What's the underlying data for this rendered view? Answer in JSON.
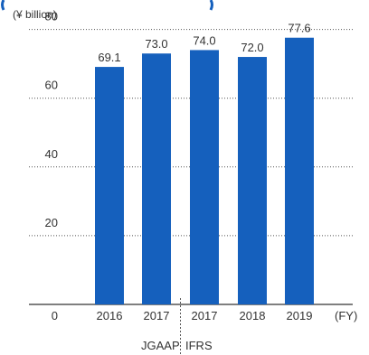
{
  "unit_label": "(¥ billion)",
  "x_axis_unit": "(FY)",
  "standards": {
    "left": "JGAAP",
    "right": "IFRS"
  },
  "colors": {
    "bar": "#1560bd",
    "grid": "#555555",
    "axis": "#333333",
    "text": "#333333"
  },
  "chart_data": {
    "type": "bar",
    "categories": [
      "2016",
      "2017",
      "2017",
      "2018",
      "2019"
    ],
    "values": [
      69.1,
      73.0,
      74.0,
      72.0,
      77.6
    ],
    "value_labels": [
      "69.1",
      "73.0",
      "74.0",
      "72.0",
      "77.6"
    ],
    "yticks": [
      "0",
      "20",
      "40",
      "60",
      "80"
    ],
    "ylim": [
      0,
      85
    ],
    "grid": "dotted horizontal",
    "divider_between": [
      1,
      2
    ]
  }
}
